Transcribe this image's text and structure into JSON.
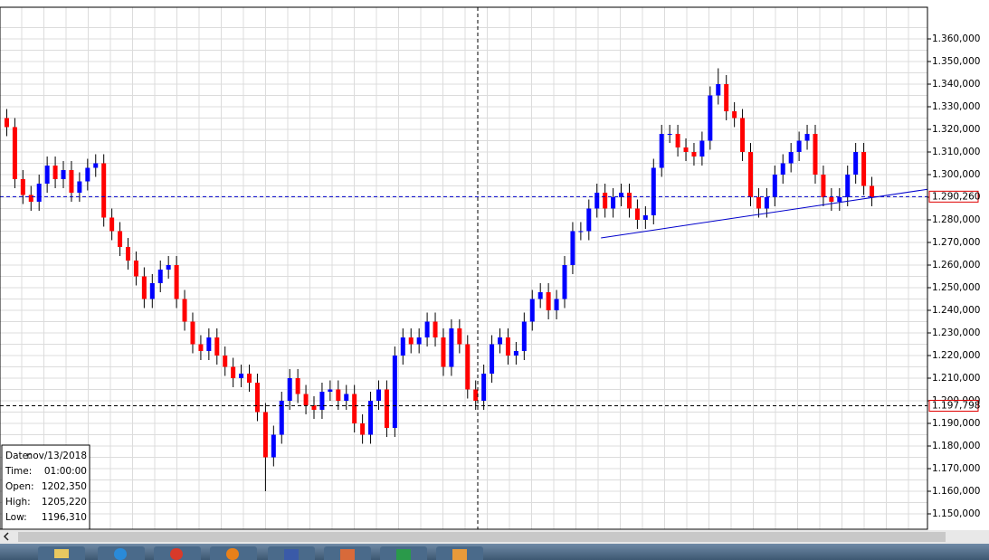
{
  "chart_data": {
    "type": "candlestick",
    "open": [
      1.325,
      1.321,
      1.298,
      1.291,
      1.288,
      1.296,
      1.304,
      1.298,
      1.302,
      1.292,
      1.297,
      1.303,
      1.305,
      1.281,
      1.275,
      1.268,
      1.262,
      1.255,
      1.245,
      1.252,
      1.258,
      1.26,
      1.245,
      1.235,
      1.225,
      1.222,
      1.228,
      1.22,
      1.215,
      1.21,
      1.212,
      1.208,
      1.195,
      1.175,
      1.185,
      1.2,
      1.21,
      1.203,
      1.198,
      1.196,
      1.204,
      1.205,
      1.2,
      1.203,
      1.19,
      1.185,
      1.2,
      1.205,
      1.188,
      1.22,
      1.228,
      1.225,
      1.228,
      1.235,
      1.228,
      1.215,
      1.232,
      1.225,
      1.205,
      1.2,
      1.212,
      1.225,
      1.228,
      1.22,
      1.222,
      1.235,
      1.245,
      1.248,
      1.24,
      1.245,
      1.26,
      1.275,
      1.275,
      1.285,
      1.292,
      1.285,
      1.29,
      1.292,
      1.285,
      1.28,
      1.282,
      1.303,
      1.318,
      1.318,
      1.312,
      1.31,
      1.308,
      1.315,
      1.335,
      1.34,
      1.328,
      1.325,
      1.31,
      1.29,
      1.285,
      1.29,
      1.3,
      1.305,
      1.31,
      1.315,
      1.318,
      1.3,
      1.29,
      1.288,
      1.29,
      1.3,
      1.31,
      1.295
    ],
    "high": [
      1.329,
      1.325,
      1.302,
      1.295,
      1.3,
      1.308,
      1.308,
      1.306,
      1.306,
      1.301,
      1.307,
      1.309,
      1.309,
      1.285,
      1.279,
      1.272,
      1.266,
      1.259,
      1.256,
      1.262,
      1.264,
      1.264,
      1.249,
      1.239,
      1.229,
      1.232,
      1.232,
      1.224,
      1.219,
      1.216,
      1.216,
      1.212,
      1.199,
      1.189,
      1.204,
      1.214,
      1.214,
      1.207,
      1.202,
      1.208,
      1.209,
      1.209,
      1.207,
      1.207,
      1.194,
      1.204,
      1.209,
      1.209,
      1.224,
      1.232,
      1.232,
      1.232,
      1.239,
      1.239,
      1.232,
      1.236,
      1.236,
      1.229,
      1.209,
      1.216,
      1.229,
      1.232,
      1.232,
      1.226,
      1.239,
      1.249,
      1.252,
      1.252,
      1.249,
      1.264,
      1.279,
      1.279,
      1.289,
      1.296,
      1.296,
      1.294,
      1.296,
      1.296,
      1.289,
      1.286,
      1.307,
      1.322,
      1.322,
      1.322,
      1.316,
      1.314,
      1.319,
      1.339,
      1.347,
      1.344,
      1.332,
      1.329,
      1.314,
      1.294,
      1.294,
      1.304,
      1.309,
      1.314,
      1.319,
      1.322,
      1.322,
      1.304,
      1.294,
      1.294,
      1.304,
      1.314,
      1.314,
      1.299
    ],
    "low": [
      1.317,
      1.294,
      1.287,
      1.284,
      1.284,
      1.292,
      1.294,
      1.294,
      1.288,
      1.288,
      1.293,
      1.299,
      1.277,
      1.271,
      1.264,
      1.258,
      1.251,
      1.241,
      1.241,
      1.248,
      1.254,
      1.241,
      1.231,
      1.221,
      1.218,
      1.218,
      1.216,
      1.211,
      1.206,
      1.206,
      1.204,
      1.191,
      1.16,
      1.171,
      1.181,
      1.196,
      1.199,
      1.194,
      1.192,
      1.192,
      1.2,
      1.196,
      1.196,
      1.186,
      1.181,
      1.181,
      1.196,
      1.184,
      1.184,
      1.216,
      1.221,
      1.221,
      1.224,
      1.224,
      1.211,
      1.211,
      1.221,
      1.201,
      1.196,
      1.196,
      1.208,
      1.221,
      1.216,
      1.216,
      1.218,
      1.231,
      1.241,
      1.236,
      1.236,
      1.241,
      1.256,
      1.271,
      1.271,
      1.281,
      1.281,
      1.281,
      1.286,
      1.281,
      1.276,
      1.276,
      1.278,
      1.299,
      1.314,
      1.308,
      1.306,
      1.304,
      1.304,
      1.311,
      1.331,
      1.324,
      1.321,
      1.306,
      1.286,
      1.281,
      1.281,
      1.286,
      1.296,
      1.301,
      1.306,
      1.311,
      1.296,
      1.286,
      1.284,
      1.284,
      1.286,
      1.296,
      1.291,
      1.286
    ],
    "close": [
      1.321,
      1.298,
      1.291,
      1.288,
      1.296,
      1.304,
      1.298,
      1.302,
      1.292,
      1.297,
      1.303,
      1.305,
      1.281,
      1.275,
      1.268,
      1.262,
      1.255,
      1.245,
      1.252,
      1.258,
      1.26,
      1.245,
      1.235,
      1.225,
      1.222,
      1.228,
      1.22,
      1.215,
      1.21,
      1.212,
      1.208,
      1.195,
      1.175,
      1.185,
      1.2,
      1.21,
      1.203,
      1.198,
      1.196,
      1.204,
      1.205,
      1.2,
      1.203,
      1.19,
      1.185,
      1.2,
      1.205,
      1.188,
      1.22,
      1.228,
      1.225,
      1.228,
      1.235,
      1.228,
      1.215,
      1.232,
      1.225,
      1.205,
      1.2,
      1.212,
      1.225,
      1.228,
      1.22,
      1.222,
      1.235,
      1.245,
      1.248,
      1.24,
      1.245,
      1.26,
      1.275,
      1.275,
      1.285,
      1.292,
      1.285,
      1.29,
      1.292,
      1.285,
      1.28,
      1.282,
      1.303,
      1.318,
      1.318,
      1.312,
      1.31,
      1.308,
      1.315,
      1.335,
      1.34,
      1.328,
      1.325,
      1.31,
      1.29,
      1.285,
      1.29,
      1.3,
      1.305,
      1.31,
      1.315,
      1.318,
      1.3,
      1.29,
      1.288,
      1.29,
      1.3,
      1.31,
      1.295,
      1.29
    ],
    "up_color": "#0000ff",
    "down_color": "#ff0000",
    "ylim": [
      1.1432,
      1.374
    ],
    "yticks": [
      {
        "value": 1.15,
        "label": "1.150,000"
      },
      {
        "value": 1.16,
        "label": "1.160,000"
      },
      {
        "value": 1.17,
        "label": "1.170,000"
      },
      {
        "value": 1.18,
        "label": "1.180,000"
      },
      {
        "value": 1.19,
        "label": "1.190,000"
      },
      {
        "value": 1.2,
        "label": "1.200,000"
      },
      {
        "value": 1.21,
        "label": "1.210,000"
      },
      {
        "value": 1.22,
        "label": "1.220,000"
      },
      {
        "value": 1.23,
        "label": "1.230,000"
      },
      {
        "value": 1.24,
        "label": "1.240,000"
      },
      {
        "value": 1.25,
        "label": "1.250,000"
      },
      {
        "value": 1.26,
        "label": "1.260,000"
      },
      {
        "value": 1.27,
        "label": "1.270,000"
      },
      {
        "value": 1.28,
        "label": "1.280,000"
      },
      {
        "value": 1.29,
        "label": "1.290,000"
      },
      {
        "value": 1.3,
        "label": "1.300,000"
      },
      {
        "value": 1.31,
        "label": "1.310,000"
      },
      {
        "value": 1.32,
        "label": "1.320,000"
      },
      {
        "value": 1.33,
        "label": "1.330,000"
      },
      {
        "value": 1.34,
        "label": "1.340,000"
      },
      {
        "value": 1.35,
        "label": "1.350,000"
      },
      {
        "value": 1.36,
        "label": "1.360,000"
      }
    ],
    "grid": true,
    "price_lines": [
      {
        "value": 1.29026,
        "label": "1.290,260",
        "color": "#0000cc"
      },
      {
        "value": 1.197798,
        "label": "1.197,798",
        "color": "#000000"
      }
    ],
    "trendline": {
      "values": [
        1.272,
        1.2935
      ],
      "color": "#0000cc"
    },
    "info_box": {
      "rows": [
        [
          "Date:",
          "nov/13/2018"
        ],
        [
          "Time:",
          "01:00:00"
        ],
        [
          "Open:",
          "1202,350"
        ],
        [
          "High:",
          "1205,220"
        ],
        [
          "Low:",
          "1196,310"
        ]
      ]
    }
  }
}
